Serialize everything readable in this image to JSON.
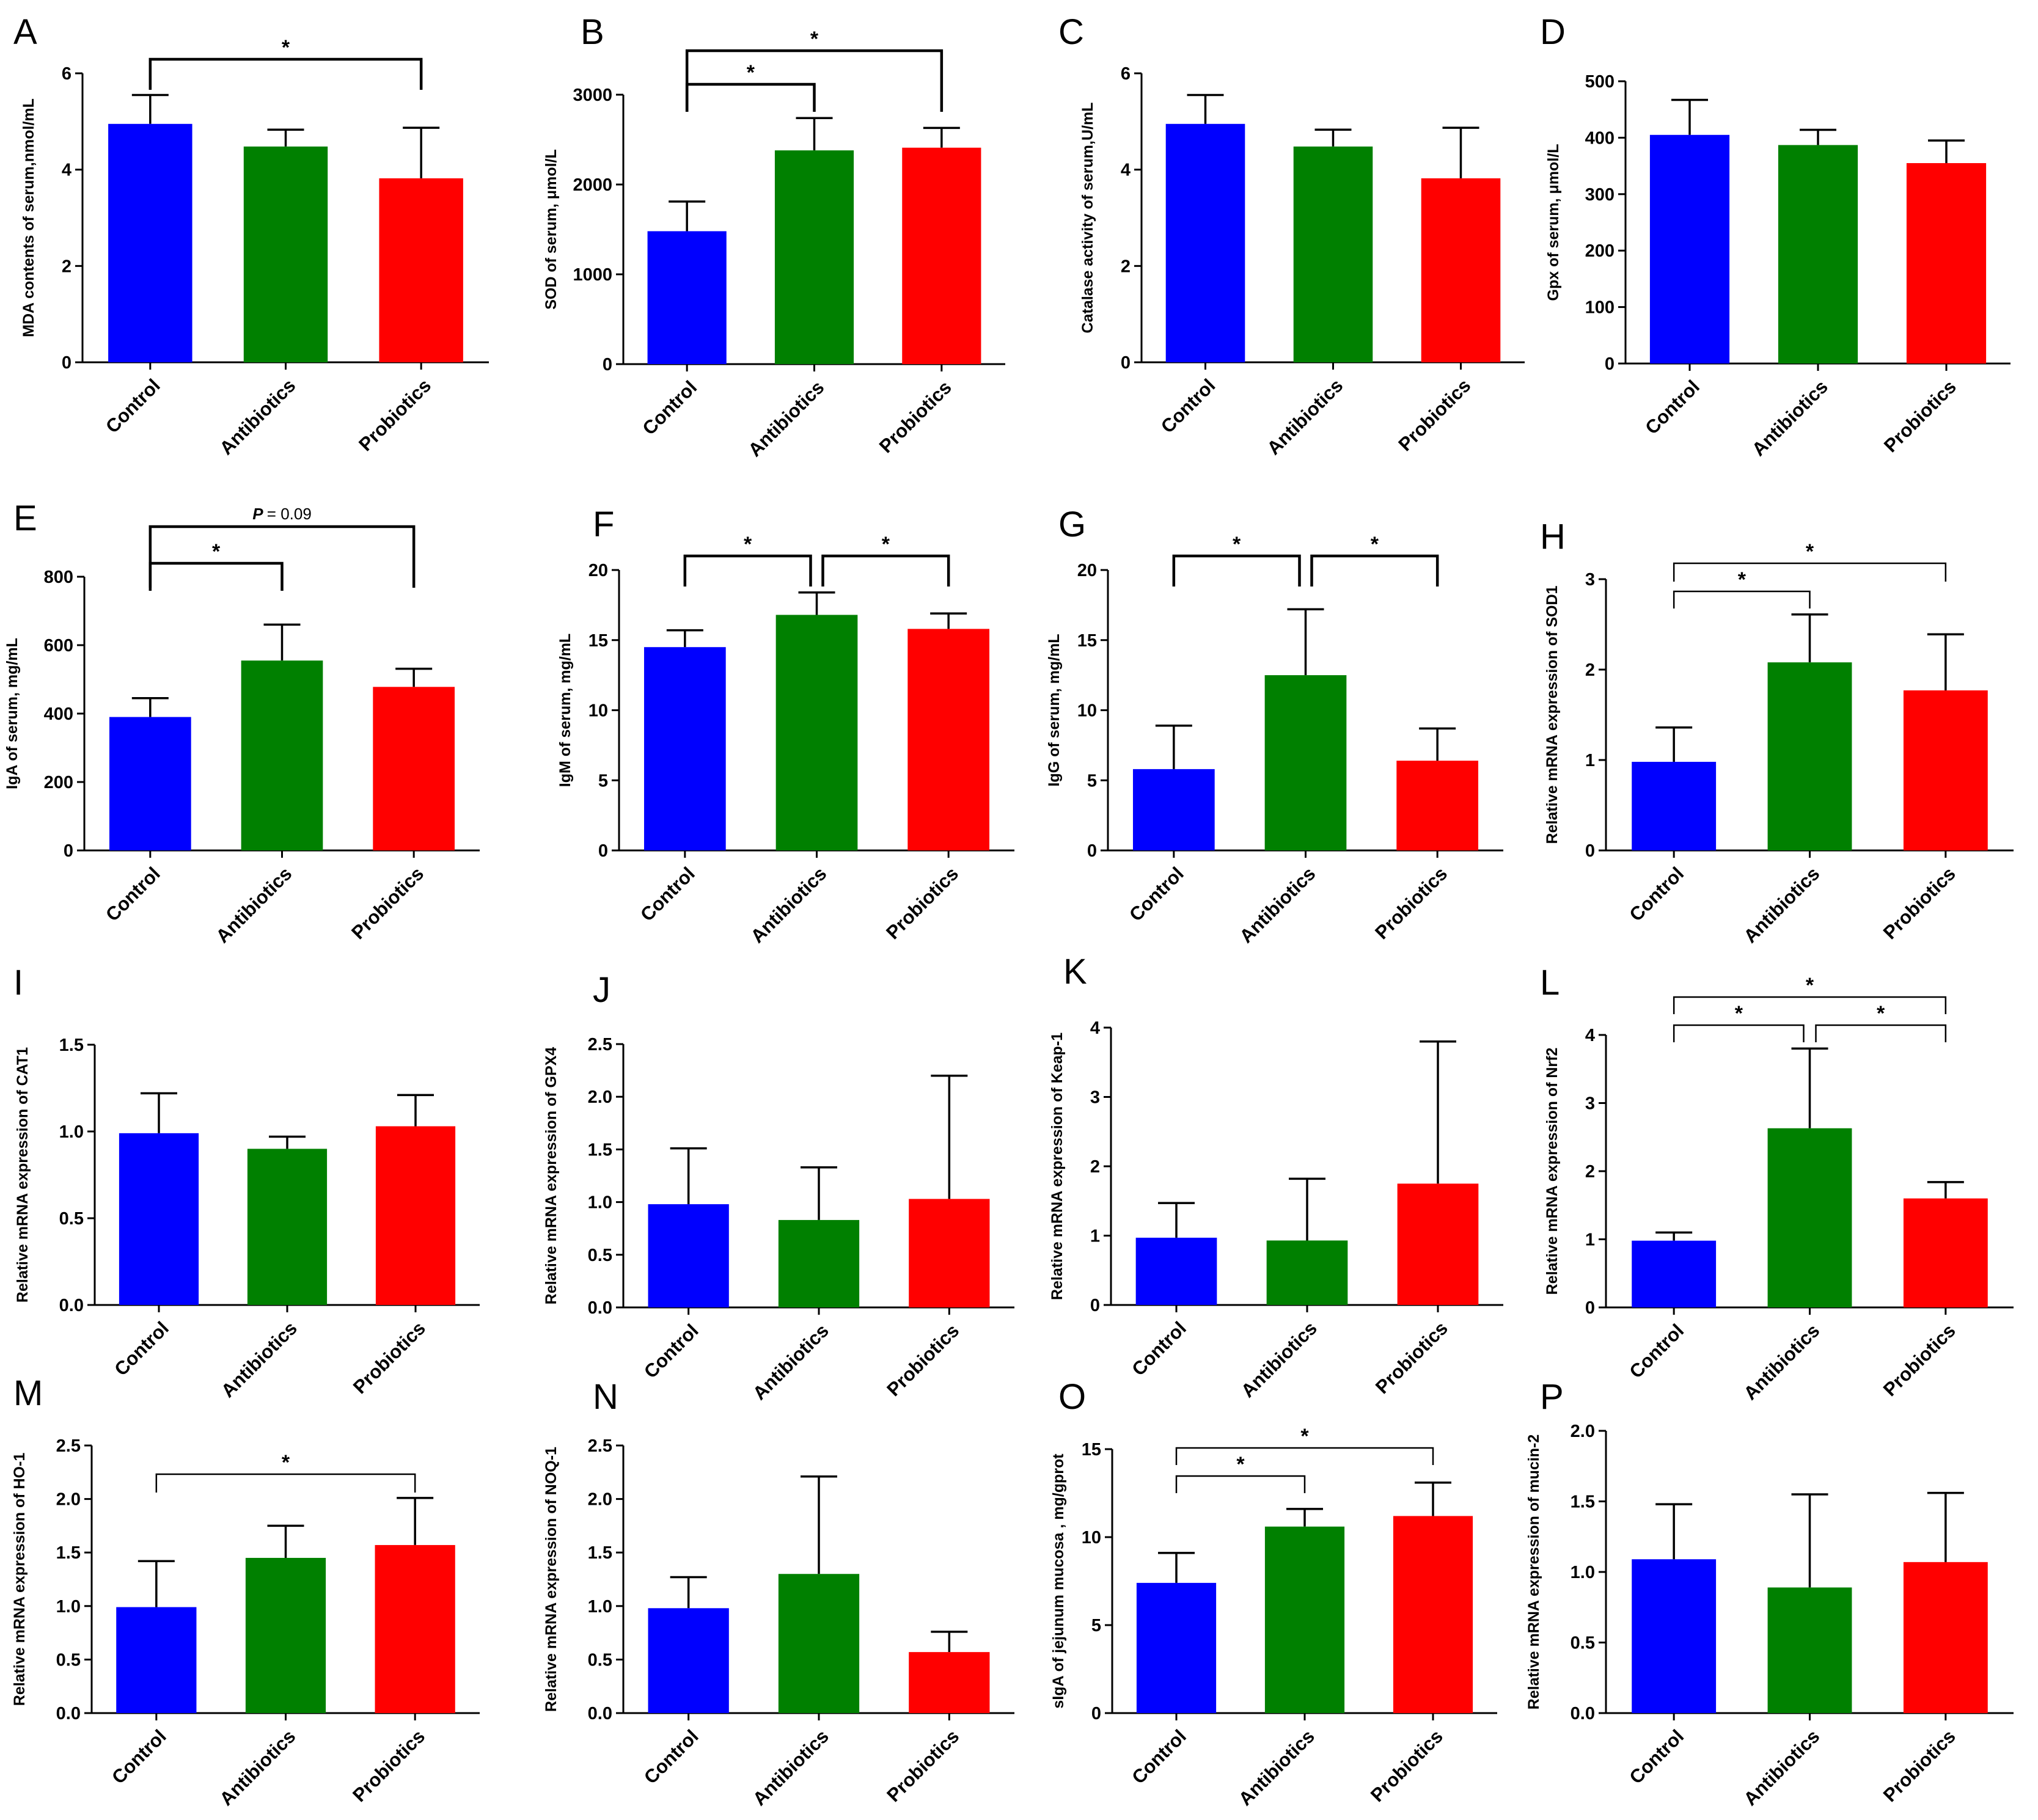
{
  "colors": {
    "control": "#0000ff",
    "antibiotics": "#008000",
    "probiotics": "#ff0000",
    "axis": "#000000"
  },
  "chart_data": [
    {
      "id": "A",
      "type": "bar",
      "ylabel": "MDA contents of serum,nmol/mL",
      "categories": [
        "Control",
        "Antibiotics",
        "Probiotics"
      ],
      "values": [
        4.95,
        4.48,
        3.82
      ],
      "errors": [
        0.6,
        0.35,
        1.05
      ],
      "ylim": [
        0,
        6
      ],
      "yticks": [
        "0",
        "2",
        "4",
        "6"
      ],
      "significance": [
        {
          "from": 0,
          "to": 2,
          "label": "*"
        }
      ]
    },
    {
      "id": "B",
      "type": "bar",
      "ylabel": "SOD of serum, μmol/L",
      "categories": [
        "Control",
        "Antibiotics",
        "Probiotics"
      ],
      "values": [
        1480,
        2380,
        2410
      ],
      "errors": [
        330,
        360,
        220
      ],
      "ylim": [
        0,
        3000
      ],
      "yticks": [
        "0",
        "1000",
        "2000",
        "3000"
      ],
      "significance": [
        {
          "from": 0,
          "to": 1,
          "label": "*"
        },
        {
          "from": 0,
          "to": 2,
          "label": "*"
        }
      ]
    },
    {
      "id": "C",
      "type": "bar",
      "ylabel": "Catalase activity of serum,U/mL",
      "categories": [
        "Control",
        "Antibiotics",
        "Probiotics"
      ],
      "values": [
        4.95,
        4.48,
        3.82
      ],
      "errors": [
        0.6,
        0.35,
        1.05
      ],
      "ylim": [
        0,
        6
      ],
      "yticks": [
        "0",
        "2",
        "4",
        "6"
      ],
      "significance": []
    },
    {
      "id": "D",
      "type": "bar",
      "ylabel": "Gpx of serum, μmol/L",
      "categories": [
        "Control",
        "Antibiotics",
        "Probiotics"
      ],
      "values": [
        405,
        387,
        355
      ],
      "errors": [
        62,
        27,
        40
      ],
      "ylim": [
        0,
        500
      ],
      "yticks": [
        "0",
        "100",
        "200",
        "300",
        "400",
        "500"
      ],
      "significance": []
    },
    {
      "id": "E",
      "type": "bar",
      "ylabel": "IgA of serum, mg/mL",
      "categories": [
        "Control",
        "Antibiotics",
        "Probiotics"
      ],
      "values": [
        390,
        555,
        478
      ],
      "errors": [
        55,
        105,
        53
      ],
      "ylim": [
        0,
        800
      ],
      "yticks": [
        "0",
        "200",
        "400",
        "600",
        "800"
      ],
      "significance": [
        {
          "from": 0,
          "to": 1,
          "label": "*"
        },
        {
          "from": 0,
          "to": 2,
          "label": "= 0.09",
          "prefix": "P"
        }
      ]
    },
    {
      "id": "F",
      "type": "bar",
      "ylabel": "IgM of serum, mg/mL",
      "categories": [
        "Control",
        "Antibiotics",
        "Probiotics"
      ],
      "values": [
        14.5,
        16.8,
        15.8
      ],
      "errors": [
        1.2,
        1.6,
        1.1
      ],
      "ylim": [
        0,
        20
      ],
      "yticks": [
        "0",
        "5",
        "10",
        "15",
        "20"
      ],
      "significance": [
        {
          "from": 0,
          "to": 1,
          "label": "*"
        },
        {
          "from": 1,
          "to": 2,
          "label": "*"
        }
      ]
    },
    {
      "id": "G",
      "type": "bar",
      "ylabel": "IgG of serum, mg/mL",
      "categories": [
        "Control",
        "Antibiotics",
        "Probiotics"
      ],
      "values": [
        5.8,
        12.5,
        6.4
      ],
      "errors": [
        3.1,
        4.7,
        2.3
      ],
      "ylim": [
        0,
        20
      ],
      "yticks": [
        "0",
        "5",
        "10",
        "15",
        "20"
      ],
      "significance": [
        {
          "from": 0,
          "to": 1,
          "label": "*"
        },
        {
          "from": 1,
          "to": 2,
          "label": "*"
        }
      ]
    },
    {
      "id": "H",
      "type": "bar",
      "ylabel": "Relative mRNA expression  of SOD1",
      "categories": [
        "Control",
        "Antibiotics",
        "Probiotics"
      ],
      "values": [
        0.98,
        2.08,
        1.77
      ],
      "errors": [
        0.38,
        0.53,
        0.62
      ],
      "ylim": [
        0,
        3
      ],
      "yticks": [
        "0",
        "1",
        "2",
        "3"
      ],
      "significance": [
        {
          "from": 0,
          "to": 1,
          "label": "*"
        },
        {
          "from": 0,
          "to": 2,
          "label": "*"
        }
      ]
    },
    {
      "id": "I",
      "type": "bar",
      "ylabel": "Relative mRNA expression  of CAT1",
      "categories": [
        "Control",
        "Antibiotics",
        "Probiotics"
      ],
      "values": [
        0.99,
        0.9,
        1.03
      ],
      "errors": [
        0.23,
        0.07,
        0.18
      ],
      "ylim": [
        0,
        1.5
      ],
      "yticks": [
        "0.0",
        "0.5",
        "1.0",
        "1.5"
      ],
      "significance": []
    },
    {
      "id": "J",
      "type": "bar",
      "ylabel": "Relative mRNA expression  of GPX4",
      "categories": [
        "Control",
        "Antibiotics",
        "Probiotics"
      ],
      "values": [
        0.98,
        0.83,
        1.03
      ],
      "errors": [
        0.53,
        0.5,
        1.17
      ],
      "ylim": [
        0,
        2.5
      ],
      "yticks": [
        "0.0",
        "0.5",
        "1.0",
        "1.5",
        "2.0",
        "2.5"
      ],
      "significance": []
    },
    {
      "id": "K",
      "type": "bar",
      "ylabel": "Relative mRNA expression  of Keap-1",
      "categories": [
        "Control",
        "Antibiotics",
        "Probiotics"
      ],
      "values": [
        0.97,
        0.93,
        1.75
      ],
      "errors": [
        0.5,
        0.89,
        2.05
      ],
      "ylim": [
        0,
        4
      ],
      "yticks": [
        "0",
        "1",
        "2",
        "3",
        "4"
      ],
      "significance": []
    },
    {
      "id": "L",
      "type": "bar",
      "ylabel": "Relative mRNA expression  of Nrf2",
      "categories": [
        "Control",
        "Antibiotics",
        "Probiotics"
      ],
      "values": [
        0.98,
        2.63,
        1.6
      ],
      "errors": [
        0.12,
        1.17,
        0.24
      ],
      "ylim": [
        0,
        4
      ],
      "yticks": [
        "0",
        "1",
        "2",
        "3",
        "4"
      ],
      "significance": [
        {
          "from": 0,
          "to": 1,
          "label": "*"
        },
        {
          "from": 1,
          "to": 2,
          "label": "*"
        },
        {
          "from": 0,
          "to": 2,
          "label": "*"
        }
      ]
    },
    {
      "id": "M",
      "type": "bar",
      "ylabel": "Relative mRNA expression  of HO-1",
      "categories": [
        "Control",
        "Antibiotics",
        "Probiotics"
      ],
      "values": [
        0.99,
        1.45,
        1.57
      ],
      "errors": [
        0.43,
        0.3,
        0.44
      ],
      "ylim": [
        0,
        2.5
      ],
      "yticks": [
        "0.0",
        "0.5",
        "1.0",
        "1.5",
        "2.0",
        "2.5"
      ],
      "significance": [
        {
          "from": 0,
          "to": 2,
          "label": "*"
        }
      ]
    },
    {
      "id": "N",
      "type": "bar",
      "ylabel": "Relative mRNA expression  of NOQ-1",
      "categories": [
        "Control",
        "Antibiotics",
        "Probiotics"
      ],
      "values": [
        0.98,
        1.3,
        0.57
      ],
      "errors": [
        0.29,
        0.91,
        0.19
      ],
      "ylim": [
        0,
        2.5
      ],
      "yticks": [
        "0.0",
        "0.5",
        "1.0",
        "1.5",
        "2.0",
        "2.5"
      ],
      "significance": []
    },
    {
      "id": "O",
      "type": "bar",
      "ylabel": "sIgA of jejunum mucosa , mg/gprot",
      "categories": [
        "Control",
        "Antibiotics",
        "Probiotics"
      ],
      "values": [
        7.4,
        10.6,
        11.2
      ],
      "errors": [
        1.7,
        1.0,
        1.9
      ],
      "ylim": [
        0,
        15
      ],
      "yticks": [
        "0",
        "5",
        "10",
        "15"
      ],
      "significance": [
        {
          "from": 0,
          "to": 1,
          "label": "*"
        },
        {
          "from": 0,
          "to": 2,
          "label": "*"
        }
      ]
    },
    {
      "id": "P",
      "type": "bar",
      "ylabel": "Relative mRNA expression  of mucin-2",
      "categories": [
        "Control",
        "Antibiotics",
        "Probiotics"
      ],
      "values": [
        1.09,
        0.89,
        1.07
      ],
      "errors": [
        0.39,
        0.66,
        0.49
      ],
      "ylim": [
        0,
        2
      ],
      "yticks": [
        "0.0",
        "0.5",
        "1.0",
        "1.5",
        "2.0"
      ],
      "significance": []
    }
  ]
}
